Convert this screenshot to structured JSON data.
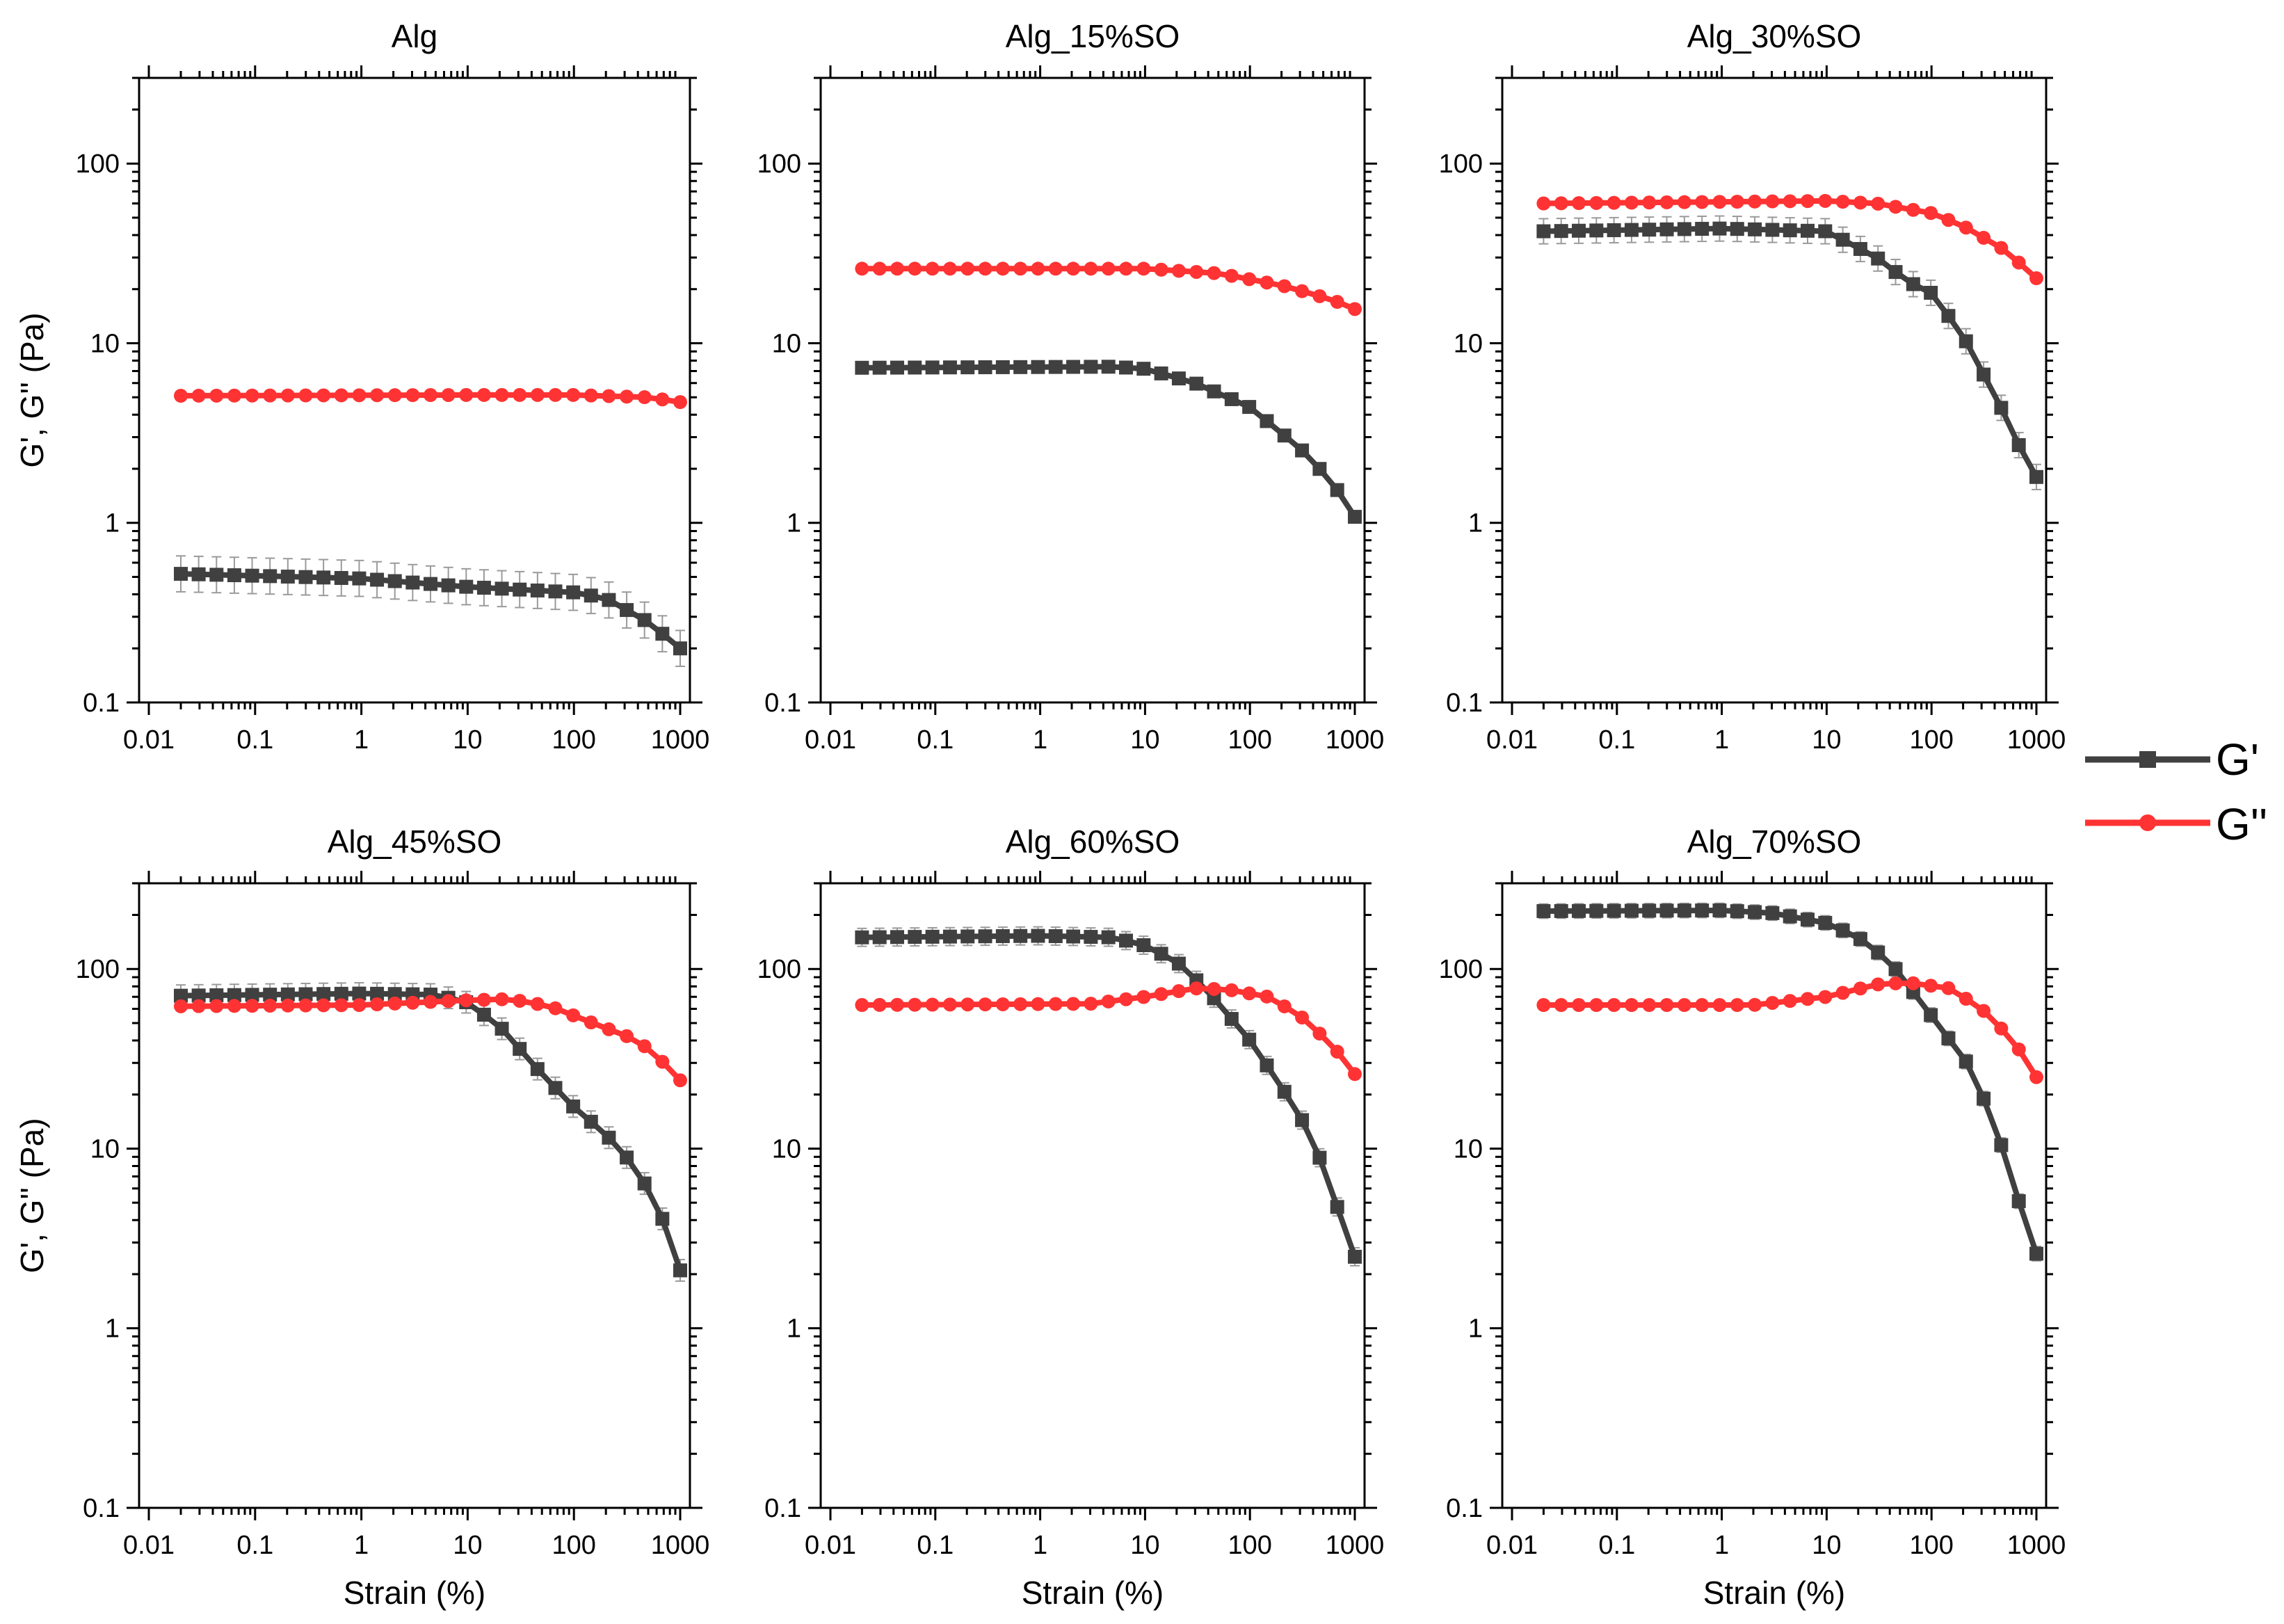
{
  "figure": {
    "legend": {
      "position": "right",
      "items": [
        {
          "label": "G'",
          "color": "#404040",
          "marker": "square"
        },
        {
          "label": "G''",
          "color": "#ff3333",
          "marker": "circle"
        }
      ]
    },
    "colors": {
      "g_prime": "#404040",
      "g_double_prime": "#ff3333",
      "error_bar": "#9a9a9a"
    }
  },
  "chart_data": [
    {
      "type": "line",
      "title": "Alg",
      "xlabel": "",
      "ylabel": "G', G'' (Pa)",
      "xscale": "log",
      "yscale": "log",
      "xlim": [
        0.01,
        1000
      ],
      "ylim": [
        0.1,
        300
      ],
      "xticks": [
        "0.01",
        "0.1",
        "1",
        "10",
        "100",
        "1000"
      ],
      "yticks": [
        "0.1",
        "1",
        "10",
        "100"
      ],
      "series": [
        {
          "name": "G'",
          "anchors": [
            [
              0.02,
              0.52
            ],
            [
              1,
              0.49
            ],
            [
              10,
              0.44
            ],
            [
              100,
              0.41
            ],
            [
              200,
              0.38
            ],
            [
              500,
              0.28
            ],
            [
              1000,
              0.2
            ]
          ],
          "error": 0.1
        },
        {
          "name": "G''",
          "anchors": [
            [
              0.02,
              5.1
            ],
            [
              10,
              5.15
            ],
            [
              100,
              5.15
            ],
            [
              500,
              5.0
            ],
            [
              1000,
              4.7
            ]
          ],
          "error": 0.02
        }
      ]
    },
    {
      "type": "line",
      "title": "Alg_15%SO",
      "xlabel": "",
      "ylabel": "",
      "xscale": "log",
      "yscale": "log",
      "xlim": [
        0.01,
        1000
      ],
      "ylim": [
        0.1,
        300
      ],
      "xticks": [
        "0.01",
        "0.1",
        "1",
        "10",
        "100",
        "1000"
      ],
      "yticks": [
        "0.1",
        "1",
        "10",
        "100"
      ],
      "series": [
        {
          "name": "G'",
          "anchors": [
            [
              0.02,
              7.3
            ],
            [
              5,
              7.4
            ],
            [
              10,
              7.2
            ],
            [
              30,
              6.0
            ],
            [
              100,
              4.4
            ],
            [
              300,
              2.6
            ],
            [
              600,
              1.7
            ],
            [
              1000,
              1.08
            ]
          ],
          "error": 0.01
        },
        {
          "name": "G''",
          "anchors": [
            [
              0.02,
              26
            ],
            [
              10,
              26
            ],
            [
              50,
              24.5
            ],
            [
              200,
              21
            ],
            [
              600,
              17.5
            ],
            [
              1000,
              15.5
            ]
          ],
          "error": 0.01
        }
      ]
    },
    {
      "type": "line",
      "title": "Alg_30%SO",
      "xlabel": "",
      "ylabel": "",
      "xscale": "log",
      "yscale": "log",
      "xlim": [
        0.01,
        1000
      ],
      "ylim": [
        0.1,
        300
      ],
      "xticks": [
        "0.01",
        "0.1",
        "1",
        "10",
        "100",
        "1000"
      ],
      "yticks": [
        "0.1",
        "1",
        "10",
        "100"
      ],
      "series": [
        {
          "name": "G'",
          "anchors": [
            [
              0.02,
              42
            ],
            [
              1,
              43.5
            ],
            [
              10,
              42
            ],
            [
              30,
              30
            ],
            [
              60,
              22
            ],
            [
              100,
              19
            ],
            [
              200,
              11
            ],
            [
              500,
              4
            ],
            [
              800,
              2.2
            ],
            [
              1000,
              1.8
            ]
          ],
          "error": 0.07
        },
        {
          "name": "G''",
          "anchors": [
            [
              0.02,
              60
            ],
            [
              10,
              62
            ],
            [
              30,
              60
            ],
            [
              100,
              53
            ],
            [
              200,
              45
            ],
            [
              500,
              33
            ],
            [
              1000,
              23
            ]
          ],
          "error": 0.01
        }
      ]
    },
    {
      "type": "line",
      "title": "Alg_45%SO",
      "xlabel": "Strain (%)",
      "ylabel": "G', G'' (Pa)",
      "xscale": "log",
      "yscale": "log",
      "xlim": [
        0.01,
        1000
      ],
      "ylim": [
        0.1,
        300
      ],
      "xticks": [
        "0.01",
        "0.1",
        "1",
        "10",
        "100",
        "1000"
      ],
      "yticks": [
        "0.1",
        "1",
        "10",
        "100"
      ],
      "series": [
        {
          "name": "G'",
          "anchors": [
            [
              0.02,
              71
            ],
            [
              1,
              73
            ],
            [
              5,
              72
            ],
            [
              10,
              65
            ],
            [
              20,
              48
            ],
            [
              50,
              26
            ],
            [
              100,
              17
            ],
            [
              200,
              12
            ],
            [
              350,
              8.3
            ],
            [
              600,
              5
            ],
            [
              850,
              2.8
            ],
            [
              1000,
              2.1
            ]
          ],
          "error": 0.06
        },
        {
          "name": "G''",
          "anchors": [
            [
              0.02,
              62
            ],
            [
              1,
              63
            ],
            [
              10,
              67
            ],
            [
              25,
              68
            ],
            [
              60,
              62
            ],
            [
              150,
              50
            ],
            [
              400,
              40
            ],
            [
              800,
              28
            ],
            [
              1000,
              24
            ]
          ],
          "error": 0.02
        }
      ]
    },
    {
      "type": "line",
      "title": "Alg_60%SO",
      "xlabel": "Strain (%)",
      "ylabel": "",
      "xscale": "log",
      "yscale": "log",
      "xlim": [
        0.01,
        1000
      ],
      "ylim": [
        0.1,
        300
      ],
      "xticks": [
        "0.01",
        "0.1",
        "1",
        "10",
        "100",
        "1000"
      ],
      "yticks": [
        "0.1",
        "1",
        "10",
        "100"
      ],
      "series": [
        {
          "name": "G'",
          "anchors": [
            [
              0.02,
              150
            ],
            [
              1,
              153
            ],
            [
              5,
              150
            ],
            [
              10,
              135
            ],
            [
              20,
              110
            ],
            [
              40,
              75
            ],
            [
              100,
              40
            ],
            [
              200,
              22
            ],
            [
              350,
              13
            ],
            [
              550,
              7
            ],
            [
              800,
              3.5
            ],
            [
              1000,
              2.5
            ]
          ],
          "error": 0.05
        },
        {
          "name": "G''",
          "anchors": [
            [
              0.02,
              63
            ],
            [
              3,
              64
            ],
            [
              10,
              70
            ],
            [
              30,
              78
            ],
            [
              60,
              77
            ],
            [
              150,
              70
            ],
            [
              300,
              55
            ],
            [
              600,
              38
            ],
            [
              1000,
              26
            ]
          ],
          "error": 0.02
        }
      ]
    },
    {
      "type": "line",
      "title": "Alg_70%SO",
      "xlabel": "Strain (%)",
      "ylabel": "",
      "xscale": "log",
      "yscale": "log",
      "xlim": [
        0.01,
        1000
      ],
      "ylim": [
        0.1,
        300
      ],
      "xticks": [
        "0.01",
        "0.1",
        "1",
        "10",
        "100",
        "1000"
      ],
      "yticks": [
        "0.1",
        "1",
        "10",
        "100"
      ],
      "series": [
        {
          "name": "G'",
          "anchors": [
            [
              0.02,
              210
            ],
            [
              1,
              212
            ],
            [
              3,
              205
            ],
            [
              10,
              180
            ],
            [
              20,
              150
            ],
            [
              40,
              110
            ],
            [
              80,
              65
            ],
            [
              150,
              40
            ],
            [
              250,
              27
            ],
            [
              350,
              16
            ],
            [
              550,
              8
            ],
            [
              800,
              3.6
            ],
            [
              1000,
              2.6
            ]
          ],
          "error": 0.04
        },
        {
          "name": "G''",
          "anchors": [
            [
              0.02,
              63
            ],
            [
              2,
              63
            ],
            [
              10,
              70
            ],
            [
              30,
              82
            ],
            [
              60,
              84
            ],
            [
              150,
              78
            ],
            [
              300,
              60
            ],
            [
              600,
              40
            ],
            [
              1000,
              25
            ]
          ],
          "error": 0.02
        }
      ]
    }
  ]
}
